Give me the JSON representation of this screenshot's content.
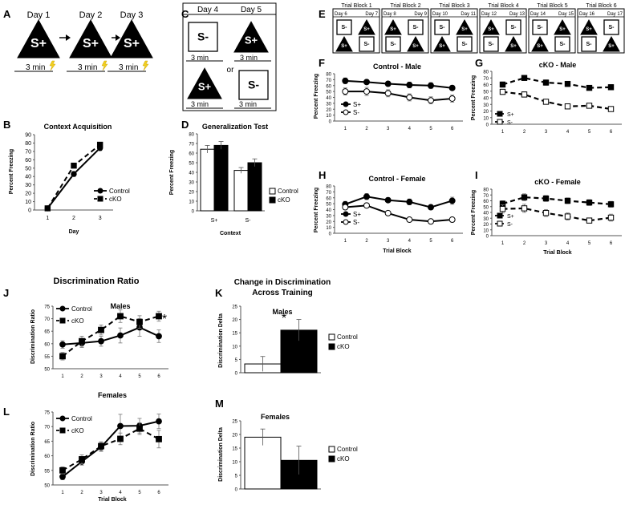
{
  "panel_letters": [
    "A",
    "B",
    "C",
    "D",
    "E",
    "F",
    "G",
    "H",
    "I",
    "J",
    "K",
    "L",
    "M"
  ],
  "panelA": {
    "days": [
      "Day 1",
      "Day 2",
      "Day 3"
    ],
    "stimulus": "S+",
    "duration": "3 min"
  },
  "panelC": {
    "days": [
      "Day 4",
      "Day 5"
    ],
    "left_top": "S-",
    "left_bottom": "S+",
    "right_top": "S+",
    "right_bottom": "S-",
    "or_text": "or",
    "duration": "3 min"
  },
  "panelE": {
    "blocks": [
      {
        "label": "Trial Block 1",
        "days": [
          "Day 6",
          "Day 7"
        ],
        "top": [
          "S-",
          "S+"
        ],
        "bottom": [
          "S+",
          "S-"
        ]
      },
      {
        "label": "Trial Block 2",
        "days": [
          "Day 8",
          "Day 9"
        ],
        "top": [
          "S+",
          "S-"
        ],
        "bottom": [
          "S-",
          "S+"
        ]
      },
      {
        "label": "Trial Block 3",
        "days": [
          "Day 10",
          "Day 11"
        ],
        "top": [
          "S-",
          "S+"
        ],
        "bottom": [
          "S+",
          "S-"
        ]
      },
      {
        "label": "Trial Block 4",
        "days": [
          "Day 12",
          "Day 13"
        ],
        "top": [
          "S+",
          "S-"
        ],
        "bottom": [
          "S-",
          "S+"
        ]
      },
      {
        "label": "Trial Block 5",
        "days": [
          "Day 14",
          "Day 15"
        ],
        "top": [
          "S-",
          "S+"
        ],
        "bottom": [
          "S+",
          "S-"
        ]
      },
      {
        "label": "Trial Block 6",
        "days": [
          "Day 16",
          "Day 17"
        ],
        "top": [
          "S+",
          "S-"
        ],
        "bottom": [
          "S-",
          "S+"
        ]
      }
    ]
  },
  "colors": {
    "black": "#000000",
    "white": "#ffffff",
    "gray": "#888888",
    "lightning": "#f2cf1f"
  },
  "chart_data": [
    {
      "id": "B",
      "type": "line",
      "title": "Context Acquisition",
      "xlabel": "Day",
      "ylabel": "Percent Freezing",
      "x": [
        1,
        2,
        3
      ],
      "xlim": [
        0.5,
        3.5
      ],
      "ylim": [
        0,
        90
      ],
      "yticks": [
        0,
        10,
        20,
        30,
        40,
        50,
        60,
        70,
        80,
        90
      ],
      "legend": [
        "Control",
        "cKO"
      ],
      "legend_position": "right",
      "series": [
        {
          "name": "Control",
          "style": "solid",
          "marker": "circle",
          "values": [
            2,
            43,
            74
          ],
          "errors": [
            1,
            3,
            3
          ]
        },
        {
          "name": "cKO",
          "style": "dashed",
          "marker": "square",
          "values": [
            2,
            53,
            78
          ],
          "errors": [
            1,
            3,
            3
          ]
        }
      ]
    },
    {
      "id": "D",
      "type": "bar",
      "title": "Generalization Test",
      "xlabel": "Context",
      "ylabel": "Percent Freezing",
      "categories": [
        "S+",
        "S-"
      ],
      "ylim": [
        0,
        80
      ],
      "yticks": [
        0,
        10,
        20,
        30,
        40,
        50,
        60,
        70,
        80
      ],
      "legend": [
        "Control",
        "cKO"
      ],
      "legend_position": "right",
      "series": [
        {
          "name": "Control",
          "fill": "white",
          "values": [
            64,
            42
          ],
          "errors": [
            4,
            3
          ]
        },
        {
          "name": "cKO",
          "fill": "black",
          "values": [
            68,
            50
          ],
          "errors": [
            4,
            4
          ]
        }
      ]
    },
    {
      "id": "F",
      "type": "line",
      "title": "Control - Male",
      "xlabel": "",
      "ylabel": "Percent Freezing",
      "x": [
        1,
        2,
        3,
        4,
        5,
        6
      ],
      "ylim": [
        0,
        80
      ],
      "yticks": [
        0,
        10,
        20,
        30,
        40,
        50,
        60,
        70,
        80
      ],
      "legend": [
        "S+",
        "S-"
      ],
      "legend_position": "left",
      "series": [
        {
          "name": "S+",
          "style": "solid",
          "marker": "circle-filled",
          "values": [
            68,
            66,
            63,
            61,
            60,
            56
          ],
          "errors": [
            5,
            4,
            4,
            5,
            5,
            4
          ]
        },
        {
          "name": "S-",
          "style": "solid",
          "marker": "circle-open",
          "values": [
            50,
            50,
            47,
            40,
            35,
            38
          ],
          "errors": [
            6,
            7,
            6,
            6,
            6,
            6
          ]
        }
      ]
    },
    {
      "id": "G",
      "type": "line",
      "title": "cKO - Male",
      "xlabel": "",
      "ylabel": "Percent Freezing",
      "x": [
        1,
        2,
        3,
        4,
        5,
        6
      ],
      "ylim": [
        0,
        80
      ],
      "yticks": [
        0,
        10,
        20,
        30,
        40,
        50,
        60,
        70,
        80
      ],
      "legend": [
        "S+",
        "S-"
      ],
      "legend_position": "left",
      "series": [
        {
          "name": "S+",
          "style": "dashed",
          "marker": "square-filled",
          "values": [
            60,
            70,
            63,
            61,
            55,
            56
          ],
          "errors": [
            4,
            3,
            4,
            4,
            3,
            4
          ]
        },
        {
          "name": "S-",
          "style": "dashed",
          "marker": "square-open",
          "values": [
            49,
            45,
            34,
            27,
            28,
            23
          ],
          "errors": [
            4,
            4,
            3,
            3,
            3,
            2
          ]
        }
      ]
    },
    {
      "id": "H",
      "type": "line",
      "title": "Control - Female",
      "xlabel": "Trial Block",
      "ylabel": "Percent Freezing",
      "x": [
        1,
        2,
        3,
        4,
        5,
        6
      ],
      "ylim": [
        0,
        80
      ],
      "yticks": [
        0,
        10,
        20,
        30,
        40,
        50,
        60,
        70,
        80
      ],
      "legend": [
        "S+",
        "S-"
      ],
      "legend_position": "left",
      "series": [
        {
          "name": "S+",
          "style": "solid",
          "marker": "circle-filled",
          "values": [
            49,
            62,
            56,
            53,
            44,
            55
          ],
          "errors": [
            5,
            5,
            4,
            5,
            4,
            6
          ]
        },
        {
          "name": "S-",
          "style": "solid",
          "marker": "circle-open",
          "values": [
            44,
            47,
            34,
            23,
            20,
            23
          ],
          "errors": [
            4,
            4,
            3,
            3,
            2,
            4
          ]
        }
      ]
    },
    {
      "id": "I",
      "type": "line",
      "title": "cKO - Female",
      "xlabel": "Trial Block",
      "ylabel": "Percent Freezing",
      "x": [
        1,
        2,
        3,
        4,
        5,
        6
      ],
      "ylim": [
        0,
        80
      ],
      "yticks": [
        0,
        10,
        20,
        30,
        40,
        50,
        60,
        70,
        80
      ],
      "legend": [
        "S+",
        "S-"
      ],
      "legend_position": "left",
      "series": [
        {
          "name": "S+",
          "style": "dashed",
          "marker": "square-filled",
          "values": [
            55,
            66,
            64,
            60,
            57,
            54
          ],
          "errors": [
            5,
            6,
            5,
            5,
            5,
            5
          ]
        },
        {
          "name": "S-",
          "style": "dashed",
          "marker": "square-open",
          "values": [
            46,
            47,
            39,
            33,
            26,
            31
          ],
          "errors": [
            7,
            7,
            6,
            6,
            4,
            6
          ]
        }
      ]
    },
    {
      "id": "J",
      "type": "line",
      "title": "Discrimination Ratio",
      "subtitle": "Males",
      "xlabel": "",
      "ylabel": "Discrimination Ratio",
      "x": [
        1,
        2,
        3,
        4,
        5,
        6
      ],
      "ylim": [
        50,
        75
      ],
      "yticks": [
        50,
        55,
        60,
        65,
        70,
        75
      ],
      "legend": [
        "Control",
        "cKO"
      ],
      "legend_position": "top-left",
      "annotation": "*",
      "series": [
        {
          "name": "Control",
          "style": "solid",
          "marker": "circle",
          "values": [
            59.7,
            60.3,
            61,
            63.3,
            66.5,
            63
          ],
          "errors": [
            1.5,
            1.8,
            2,
            3,
            3.5,
            2.5
          ]
        },
        {
          "name": "cKO",
          "style": "dashed",
          "marker": "square",
          "values": [
            55,
            61,
            65.5,
            71,
            68.7,
            71
          ],
          "errors": [
            1.5,
            2,
            2,
            2.5,
            2.5,
            2
          ]
        }
      ]
    },
    {
      "id": "K",
      "type": "bar",
      "title": "Change in Discrimination Across Training",
      "subtitle": "Males",
      "xlabel": "",
      "ylabel": "Discrimination Delta",
      "categories": [
        ""
      ],
      "ylim": [
        0,
        25
      ],
      "yticks": [
        0,
        5,
        10,
        15,
        20,
        25
      ],
      "legend": [
        "Control",
        "cKO"
      ],
      "legend_position": "right",
      "annotation": "*",
      "series": [
        {
          "name": "Control",
          "fill": "white",
          "values": [
            3.3
          ],
          "errors": [
            2.8
          ]
        },
        {
          "name": "cKO",
          "fill": "black",
          "values": [
            16
          ],
          "errors": [
            4
          ]
        }
      ]
    },
    {
      "id": "L",
      "type": "line",
      "title": "Females",
      "xlabel": "Trial Block",
      "ylabel": "Discrimination Ratio",
      "x": [
        1,
        2,
        3,
        4,
        5,
        6
      ],
      "ylim": [
        50,
        75
      ],
      "yticks": [
        50,
        55,
        60,
        65,
        70,
        75
      ],
      "legend": [
        "Control",
        "cKO"
      ],
      "legend_position": "top-left",
      "series": [
        {
          "name": "Control",
          "style": "solid",
          "marker": "circle",
          "values": [
            52.8,
            58,
            63,
            70.2,
            70.3,
            71.8
          ],
          "errors": [
            1,
            1.2,
            1.5,
            4,
            2.5,
            2.5
          ]
        },
        {
          "name": "cKO",
          "style": "dashed",
          "marker": "square",
          "values": [
            55,
            58.8,
            63.3,
            65.8,
            69.3,
            65.7
          ],
          "errors": [
            1.2,
            1.5,
            1.5,
            2,
            2,
            3
          ]
        }
      ]
    },
    {
      "id": "M",
      "type": "bar",
      "title": "Females",
      "xlabel": "",
      "ylabel": "Discrimination Delta",
      "categories": [
        ""
      ],
      "ylim": [
        0,
        25
      ],
      "yticks": [
        0,
        5,
        10,
        15,
        20,
        25
      ],
      "legend": [
        "Control",
        "cKO"
      ],
      "legend_position": "right",
      "series": [
        {
          "name": "Control",
          "fill": "white",
          "values": [
            19
          ],
          "errors": [
            3
          ]
        },
        {
          "name": "cKO",
          "fill": "black",
          "values": [
            10.5
          ],
          "errors": [
            5.2
          ]
        }
      ]
    }
  ]
}
